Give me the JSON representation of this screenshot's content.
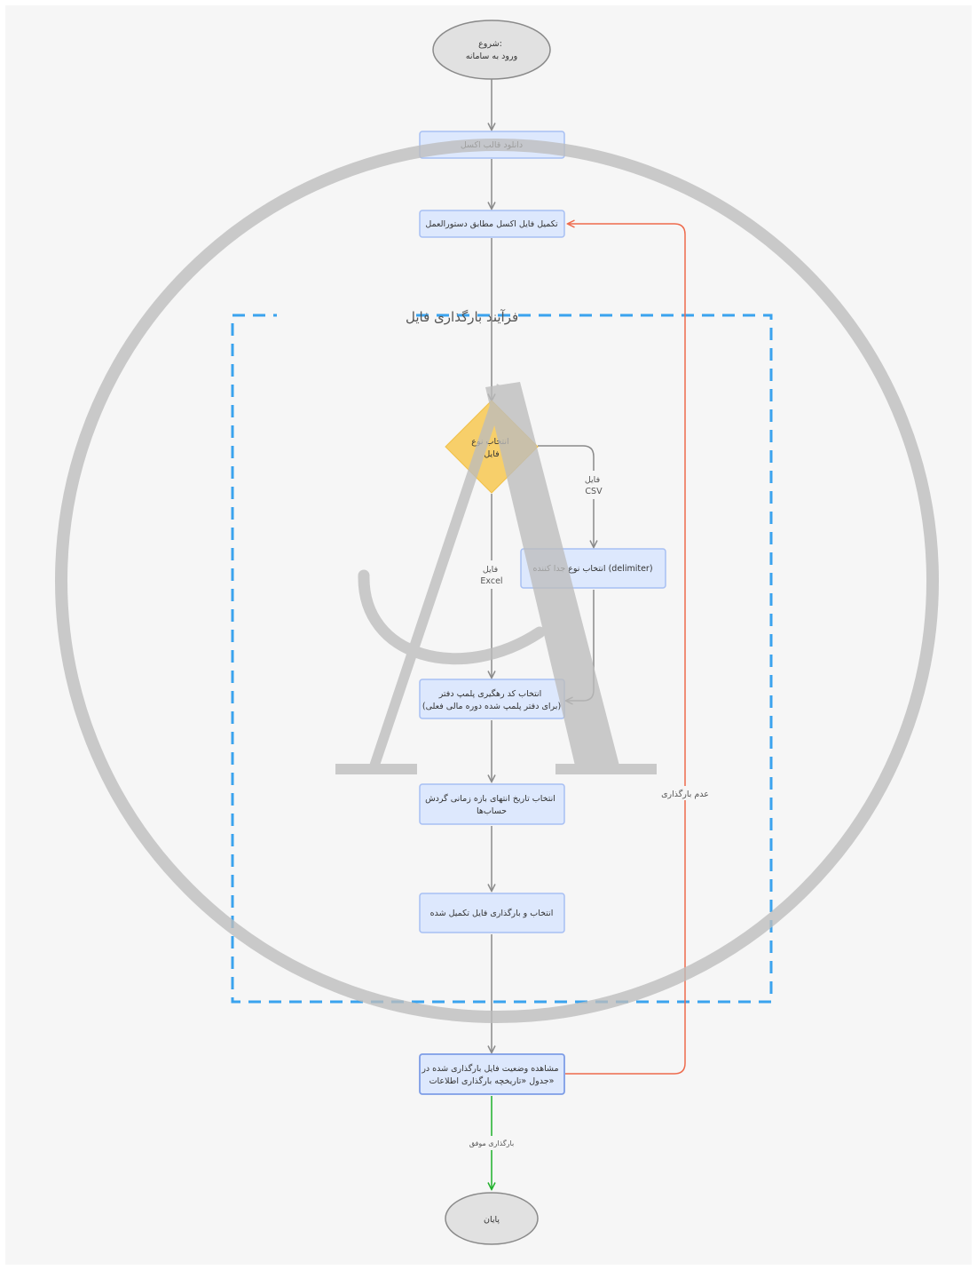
{
  "diagram": {
    "group": {
      "title": "فرآیند بارگذاری فایل"
    },
    "nodes": {
      "start": {
        "lines": [
          "شروع:",
          "ورود به سامانه"
        ]
      },
      "download": {
        "lines": [
          "دانلود قالب اکسل"
        ]
      },
      "fill": {
        "lines": [
          "تکمیل فایل اکسل مطابق دستورالعمل"
        ]
      },
      "decision": {
        "lines": [
          "انتخاب نوع",
          "فایل"
        ]
      },
      "delimiter": {
        "lines": [
          "انتخاب نوع جدا کننده (delimiter)"
        ]
      },
      "tracking": {
        "lines": [
          "انتخاب کد رهگیری پلمپ دفتر",
          "(برای دفتر پلمپ شده دوره مالی فعلی)"
        ]
      },
      "date": {
        "lines": [
          "انتخاب تاریخ انتهای بازه زمانی گردش",
          "حساب‌ها"
        ]
      },
      "upload": {
        "lines": [
          "انتخاب و بارگذاری فایل تکمیل شده"
        ]
      },
      "status": {
        "lines": [
          "مشاهده وضعیت فایل بارگذاری شده در",
          "جدول «تاریخچه بارگذاری اطلاعات»"
        ]
      },
      "end": {
        "lines": [
          "پایان"
        ]
      }
    },
    "edge_labels": {
      "csv": [
        "فایل",
        "CSV"
      ],
      "excel": [
        "فایل",
        "Excel"
      ],
      "success": [
        "بارگذاری موفق"
      ],
      "failure": [
        "عدم بارگذاری"
      ]
    },
    "colors": {
      "node_fill": "#dde8fd",
      "node_stroke": "#a7bff3",
      "decision_fill": "#f7cf6a",
      "group_stroke": "#3aa3ee",
      "edge": "#8a8a8a",
      "success_edge": "#1fb02a",
      "failure_edge": "#ee6a4c",
      "terminal_fill": "#e1e1e1",
      "watermark": "#bdbdbd"
    },
    "watermark": {
      "icon": "circle-letter-a-logo"
    }
  }
}
